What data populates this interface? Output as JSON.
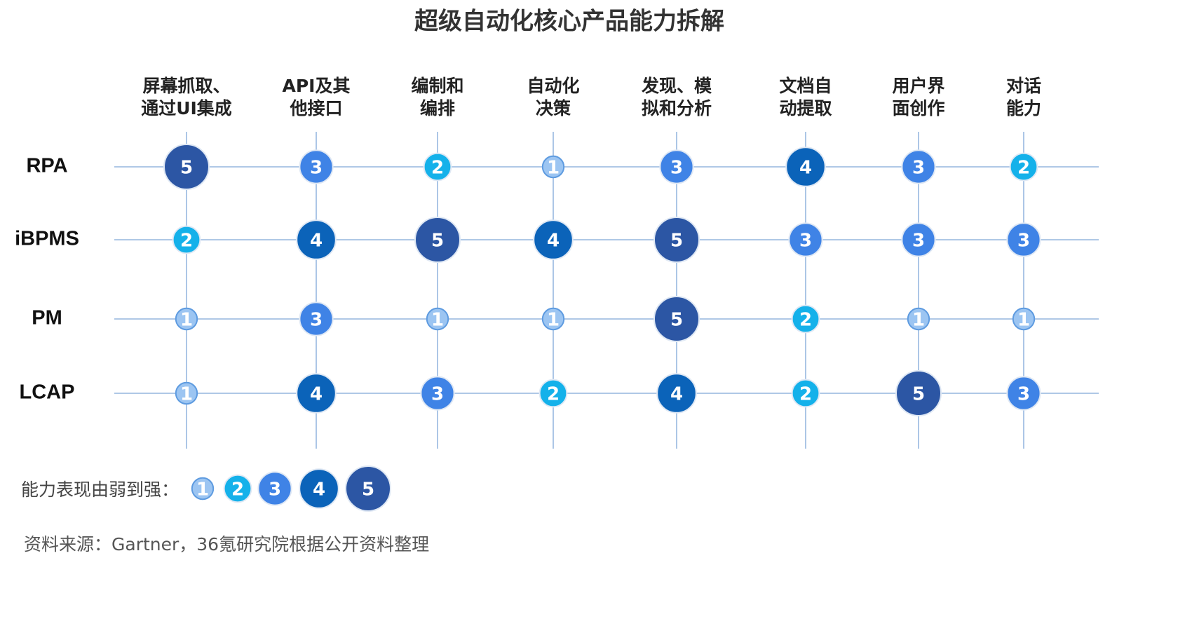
{
  "chart_data": {
    "type": "matrix",
    "title": "超级自动化核心产品能力拆解",
    "categories": [
      "屏幕抓取、\n通过UI集成",
      "API及其\n他接口",
      "编制和\n编排",
      "自动化\n决策",
      "发现、模\n拟和分析",
      "文档自\n动提取",
      "用户界\n面创作",
      "对话\n能力"
    ],
    "series": [
      {
        "name": "RPA",
        "values": [
          5,
          3,
          2,
          1,
          3,
          4,
          3,
          2
        ]
      },
      {
        "name": "iBPMS",
        "values": [
          2,
          4,
          5,
          4,
          5,
          3,
          3,
          3
        ]
      },
      {
        "name": "PM",
        "values": [
          1,
          3,
          1,
          1,
          5,
          2,
          1,
          1
        ]
      },
      {
        "name": "LCAP",
        "values": [
          1,
          4,
          3,
          2,
          4,
          2,
          5,
          3
        ]
      }
    ],
    "level_colors": [
      "#9cc5f2",
      "#14b1ea",
      "#3f83e6",
      "#0b63b9",
      "#2c56a4"
    ],
    "legend_title": "能力表现由弱到强：",
    "legend_levels": [
      1,
      2,
      3,
      4,
      5
    ],
    "grid": true,
    "source": "资料来源：Gartner，36氪研究院根据公开资料整理"
  }
}
